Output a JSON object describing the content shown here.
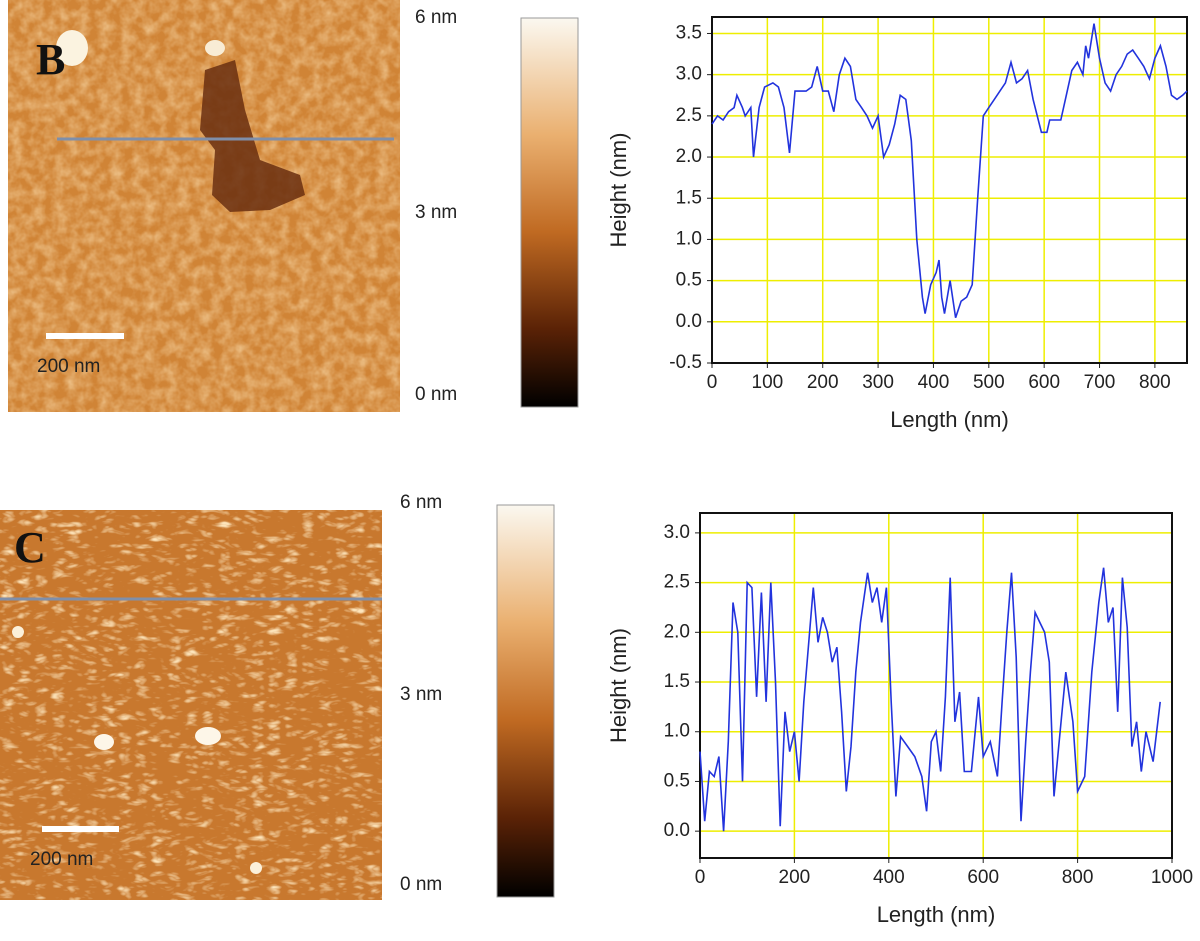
{
  "panels": [
    {
      "label": "B",
      "scale_bar": "200 nm",
      "colorbar_labels": [
        "6 nm",
        "3 nm",
        "0 nm"
      ]
    },
    {
      "label": "C",
      "scale_bar": "200 nm",
      "colorbar_labels": [
        "6 nm",
        "3 nm",
        "0 nm"
      ]
    }
  ],
  "chart_data": [
    {
      "type": "line",
      "x_label": "Length (nm)",
      "y_label": "Height (nm)",
      "x": [
        0,
        10,
        20,
        30,
        40,
        45,
        55,
        60,
        70,
        75,
        85,
        95,
        110,
        120,
        130,
        140,
        150,
        170,
        180,
        190,
        200,
        210,
        220,
        230,
        240,
        250,
        260,
        270,
        280,
        290,
        300,
        310,
        320,
        330,
        340,
        350,
        360,
        370,
        380,
        385,
        395,
        405,
        410,
        415,
        420,
        430,
        440,
        450,
        460,
        470,
        480,
        490,
        500,
        510,
        520,
        530,
        540,
        550,
        560,
        570,
        580,
        595,
        605,
        610,
        630,
        640,
        650,
        660,
        670,
        675,
        680,
        690,
        700,
        710,
        720,
        730,
        740,
        750,
        760,
        770,
        780,
        790,
        800,
        810,
        820,
        830,
        840,
        850,
        858
      ],
      "series": [
        {
          "color": "#2233dd",
          "values": [
            2.4,
            2.5,
            2.45,
            2.55,
            2.6,
            2.75,
            2.6,
            2.5,
            2.6,
            2.0,
            2.6,
            2.85,
            2.9,
            2.85,
            2.6,
            2.05,
            2.8,
            2.8,
            2.85,
            3.1,
            2.8,
            2.8,
            2.55,
            3.0,
            3.2,
            3.1,
            2.7,
            2.6,
            2.5,
            2.35,
            2.5,
            2.0,
            2.15,
            2.4,
            2.75,
            2.7,
            2.2,
            1.0,
            0.3,
            0.1,
            0.45,
            0.6,
            0.75,
            0.3,
            0.1,
            0.5,
            0.05,
            0.25,
            0.3,
            0.45,
            1.5,
            2.5,
            2.6,
            2.7,
            2.8,
            2.9,
            3.15,
            2.9,
            2.95,
            3.05,
            2.7,
            2.3,
            2.3,
            2.45,
            2.45,
            2.75,
            3.05,
            3.15,
            3.0,
            3.35,
            3.2,
            3.62,
            3.2,
            2.9,
            2.8,
            3.0,
            3.1,
            3.25,
            3.3,
            3.2,
            3.1,
            2.95,
            3.2,
            3.35,
            3.1,
            2.75,
            2.7,
            2.75,
            2.8
          ]
        }
      ],
      "xlim": [
        0,
        858
      ],
      "xticks": [
        0,
        100,
        200,
        300,
        400,
        500,
        600,
        700,
        800
      ],
      "ylim": [
        -0.5,
        3.7
      ],
      "yticks": [
        -0.5,
        {
          "value": 0,
          "label": "0.0"
        },
        0.5,
        {
          "value": 1,
          "label": "1.0"
        },
        1.5,
        {
          "value": 2,
          "label": "2.0"
        },
        2.5,
        {
          "value": 3,
          "label": "3.0"
        },
        3.5
      ],
      "grid": true,
      "grid_color": "#eeee00"
    },
    {
      "type": "line",
      "x_label": "Length (nm)",
      "y_label": "Height  (nm)",
      "x": [
        0,
        10,
        20,
        30,
        40,
        50,
        60,
        70,
        80,
        90,
        100,
        110,
        120,
        130,
        140,
        150,
        160,
        170,
        180,
        190,
        200,
        210,
        220,
        240,
        250,
        260,
        270,
        280,
        290,
        300,
        310,
        320,
        330,
        340,
        355,
        365,
        375,
        385,
        395,
        405,
        415,
        425,
        440,
        455,
        470,
        480,
        490,
        500,
        510,
        520,
        530,
        540,
        550,
        560,
        575,
        590,
        600,
        615,
        630,
        640,
        650,
        660,
        670,
        680,
        690,
        700,
        710,
        720,
        730,
        740,
        750,
        760,
        775,
        790,
        800,
        815,
        830,
        845,
        855,
        865,
        875,
        885,
        895,
        905,
        915,
        925,
        935,
        945,
        960,
        975
      ],
      "series": [
        {
          "color": "#2233dd",
          "values": [
            0.8,
            0.1,
            0.6,
            0.55,
            0.75,
            0.0,
            0.9,
            2.3,
            2.0,
            0.5,
            2.5,
            2.45,
            1.35,
            2.4,
            1.3,
            2.5,
            1.5,
            0.05,
            1.2,
            0.8,
            1.0,
            0.5,
            1.3,
            2.45,
            1.9,
            2.15,
            2.0,
            1.7,
            1.85,
            1.2,
            0.4,
            0.85,
            1.6,
            2.1,
            2.6,
            2.3,
            2.45,
            2.1,
            2.45,
            1.3,
            0.35,
            0.95,
            0.85,
            0.75,
            0.55,
            0.2,
            0.9,
            1.0,
            0.6,
            1.35,
            2.55,
            1.1,
            1.4,
            0.6,
            0.6,
            1.35,
            0.75,
            0.9,
            0.55,
            1.3,
            2.0,
            2.6,
            1.75,
            0.1,
            0.9,
            1.6,
            2.2,
            2.1,
            2.0,
            1.7,
            0.35,
            0.85,
            1.6,
            1.1,
            0.4,
            0.55,
            1.6,
            2.3,
            2.65,
            2.1,
            2.25,
            1.2,
            2.55,
            2.05,
            0.85,
            1.1,
            0.6,
            1.0,
            0.7,
            1.3
          ]
        }
      ],
      "xlim": [
        0,
        1000
      ],
      "xticks": [
        0,
        200,
        400,
        600,
        800,
        1000
      ],
      "ylim": [
        -0.27,
        3.2
      ],
      "yticks": [
        {
          "value": 0,
          "label": "0.0"
        },
        0.5,
        {
          "value": 1,
          "label": "1.0"
        },
        1.5,
        {
          "value": 2,
          "label": "2.0"
        },
        2.5,
        {
          "value": 3,
          "label": "3.0"
        }
      ],
      "grid": true,
      "grid_color": "#eeee00"
    }
  ]
}
